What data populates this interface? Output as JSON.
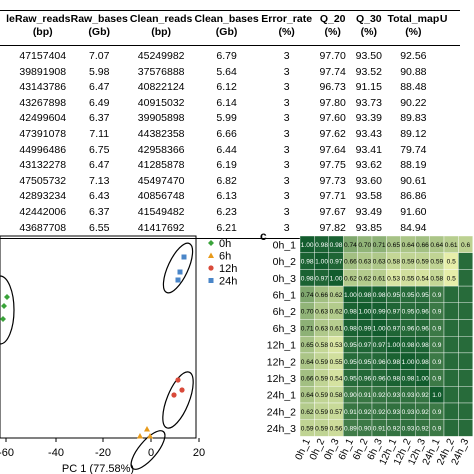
{
  "table": {
    "headers": [
      {
        "line1": "le",
        "line2": ""
      },
      {
        "line1": "Raw_reads",
        "line2": "(bp)"
      },
      {
        "line1": "Raw_bases",
        "line2": "(Gb)"
      },
      {
        "line1": "Clean_reads",
        "line2": "(bp)"
      },
      {
        "line1": "Clean_bases",
        "line2": "(Gb)"
      },
      {
        "line1": "Error_rate",
        "line2": "(%)"
      },
      {
        "line1": "Q_20",
        "line2": "(%)"
      },
      {
        "line1": "Q_30",
        "line2": "(%)"
      },
      {
        "line1": "Total_map",
        "line2": "(%)"
      },
      {
        "line1": "U",
        "line2": ""
      }
    ],
    "rows": [
      [
        "",
        "47157404",
        "7.07",
        "45249982",
        "6.79",
        "3",
        "97.70",
        "93.50",
        "92.56"
      ],
      [
        "",
        "39891908",
        "5.98",
        "37576888",
        "5.64",
        "3",
        "97.74",
        "93.52",
        "90.88"
      ],
      [
        "",
        "43143786",
        "6.47",
        "40822124",
        "6.12",
        "3",
        "96.73",
        "91.15",
        "88.48"
      ],
      [
        "",
        "43267898",
        "6.49",
        "40915032",
        "6.14",
        "3",
        "97.80",
        "93.73",
        "90.22"
      ],
      [
        "",
        "42499604",
        "6.37",
        "39905898",
        "5.99",
        "3",
        "97.60",
        "93.39",
        "89.83"
      ],
      [
        "",
        "47391078",
        "7.11",
        "44382358",
        "6.66",
        "3",
        "97.62",
        "93.43",
        "89.12"
      ],
      [
        "l",
        "44996486",
        "6.75",
        "42958366",
        "6.44",
        "3",
        "97.64",
        "93.41",
        "79.74"
      ],
      [
        "l",
        "43132278",
        "6.47",
        "41285878",
        "6.19",
        "3",
        "97.75",
        "93.62",
        "88.19"
      ],
      [
        "$",
        "47505732",
        "7.13",
        "45497470",
        "6.82",
        "3",
        "97.73",
        "93.60",
        "90.61"
      ],
      [
        "",
        "42893234",
        "6.43",
        "40856748",
        "6.13",
        "3",
        "97.71",
        "93.58",
        "86.86"
      ],
      [
        "e",
        "42442006",
        "6.37",
        "41549482",
        "6.23",
        "3",
        "97.67",
        "93.49",
        "91.60"
      ],
      [
        "$",
        "43687708",
        "6.55",
        "41417692",
        "6.21",
        "3",
        "97.82",
        "93.85",
        "84.94"
      ]
    ]
  },
  "pca": {
    "xlabel": "PC 1 (77.58%)",
    "xticks": [
      "-60",
      "-40",
      "-20",
      "0",
      "20"
    ],
    "legend": [
      {
        "label": "0h",
        "color": "#3aa33a",
        "marker": "diamond"
      },
      {
        "label": "6h",
        "color": "#e89a1a",
        "marker": "triangle"
      },
      {
        "label": "12h",
        "color": "#d94a3a",
        "marker": "circle"
      },
      {
        "label": "24h",
        "color": "#4a86c8",
        "marker": "square"
      }
    ]
  },
  "heatmap": {
    "panel_label": "c",
    "row_labels": [
      "0h_1",
      "0h_2",
      "0h_3",
      "6h_1",
      "6h_2",
      "6h_3",
      "12h_1",
      "12h_2",
      "12h_3",
      "24h_1",
      "24h_2",
      "24h_3"
    ],
    "col_labels": [
      "0h_1",
      "0h_2",
      "0h_3",
      "6h_1",
      "6h_2",
      "6h_3",
      "12h_1",
      "12h_2",
      "12h_3",
      "24h_1",
      "24h_2",
      "24h_3"
    ],
    "values": [
      [
        "1.00",
        "0.98",
        "0.98",
        "0.74",
        "0.70",
        "0.71",
        "0.65",
        "0.64",
        "0.66",
        "0.64",
        "0.61",
        "0.6"
      ],
      [
        "0.98",
        "1.00",
        "0.97",
        "0.66",
        "0.63",
        "0.63",
        "0.58",
        "0.59",
        "0.59",
        "0.59",
        "0.5",
        ""
      ],
      [
        "0.98",
        "0.97",
        "1.00",
        "0.62",
        "0.62",
        "0.61",
        "0.53",
        "0.55",
        "0.54",
        "0.58",
        "0.5",
        ""
      ],
      [
        "0.74",
        "0.66",
        "0.62",
        "1.00",
        "0.98",
        "0.98",
        "0.95",
        "0.95",
        "0.95",
        "0.9",
        ""
      ],
      [
        "0.70",
        "0.63",
        "0.62",
        "0.98",
        "1.00",
        "0.99",
        "0.97",
        "0.95",
        "0.96",
        "0.9",
        ""
      ],
      [
        "0.71",
        "0.63",
        "0.61",
        "0.98",
        "0.99",
        "1.00",
        "0.97",
        "0.96",
        "0.96",
        "0.9",
        ""
      ],
      [
        "0.65",
        "0.58",
        "0.53",
        "0.95",
        "0.97",
        "0.97",
        "1.00",
        "0.98",
        "0.98",
        "0.9",
        ""
      ],
      [
        "0.64",
        "0.59",
        "0.55",
        "0.95",
        "0.95",
        "0.96",
        "0.98",
        "1.00",
        "0.98",
        "0.9",
        ""
      ],
      [
        "0.66",
        "0.59",
        "0.54",
        "0.95",
        "0.96",
        "0.96",
        "0.98",
        "0.98",
        "1.00",
        "0.9",
        ""
      ],
      [
        "0.64",
        "0.59",
        "0.58",
        "0.90",
        "0.91",
        "0.92",
        "0.93",
        "0.93",
        "0.92",
        "1.0",
        ""
      ],
      [
        "0.62",
        "0.59",
        "0.57",
        "0.91",
        "0.92",
        "0.92",
        "0.93",
        "0.93",
        "0.92",
        "0.9",
        ""
      ],
      [
        "0.59",
        "0.59",
        "0.56",
        "0.89",
        "0.90",
        "0.91",
        "0.92",
        "0.93",
        "0.92",
        "0.9",
        ""
      ]
    ]
  }
}
